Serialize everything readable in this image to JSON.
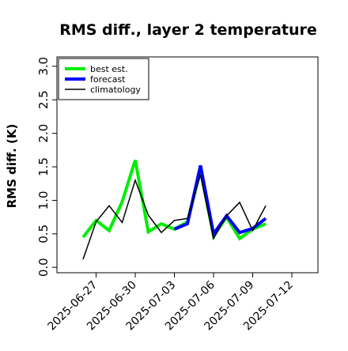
{
  "chart_data": {
    "type": "line",
    "title": "RMS diff., layer 2 temperature",
    "y_label": "RMS diff. (K)",
    "x": [
      "2025-06-26",
      "2025-06-27",
      "2025-06-28",
      "2025-06-29",
      "2025-06-30",
      "2025-07-01",
      "2025-07-02",
      "2025-07-03",
      "2025-07-04",
      "2025-07-05",
      "2025-07-06",
      "2025-07-07",
      "2025-07-08",
      "2025-07-09",
      "2025-07-10"
    ],
    "series": [
      {
        "name": "best est.",
        "color": "#00ee00",
        "width": 4,
        "values": [
          0.45,
          0.7,
          0.55,
          0.98,
          1.6,
          0.53,
          0.65,
          0.57,
          0.68,
          1.45,
          0.47,
          0.75,
          0.43,
          0.57,
          0.65
        ]
      },
      {
        "name": "forecast",
        "color": "#0000ff",
        "width": 4,
        "values": [
          null,
          null,
          null,
          null,
          null,
          null,
          null,
          0.57,
          0.65,
          1.52,
          0.5,
          0.77,
          0.52,
          0.58,
          0.73
        ]
      },
      {
        "name": "climatology",
        "color": "#000000",
        "width": 1.5,
        "values": [
          0.12,
          0.68,
          0.92,
          0.67,
          1.3,
          0.78,
          0.52,
          0.7,
          0.73,
          1.38,
          0.43,
          0.77,
          0.97,
          0.55,
          0.92
        ]
      }
    ],
    "xlim": [
      "2025-06-24",
      "2025-07-14"
    ],
    "xticks": [
      "2025-06-27",
      "2025-06-30",
      "2025-07-03",
      "2025-07-06",
      "2025-07-09",
      "2025-07-12"
    ],
    "xtick_colors": [
      "#000000",
      "#000000",
      "#228b22",
      "#000000",
      "#000000",
      "#000000"
    ],
    "ylim": [
      -0.08,
      3.14
    ],
    "yticks": [
      {
        "value": 0,
        "label": "0.0"
      },
      {
        "value": 0.5,
        "label": "0.5"
      },
      {
        "value": 1,
        "label": "1.0"
      },
      {
        "value": 1.5,
        "label": "1.5"
      },
      {
        "value": 2,
        "label": "2.0"
      },
      {
        "value": 2.5,
        "label": "2.5"
      },
      {
        "value": 3,
        "label": "3.0"
      }
    ],
    "legend": "top-left"
  }
}
